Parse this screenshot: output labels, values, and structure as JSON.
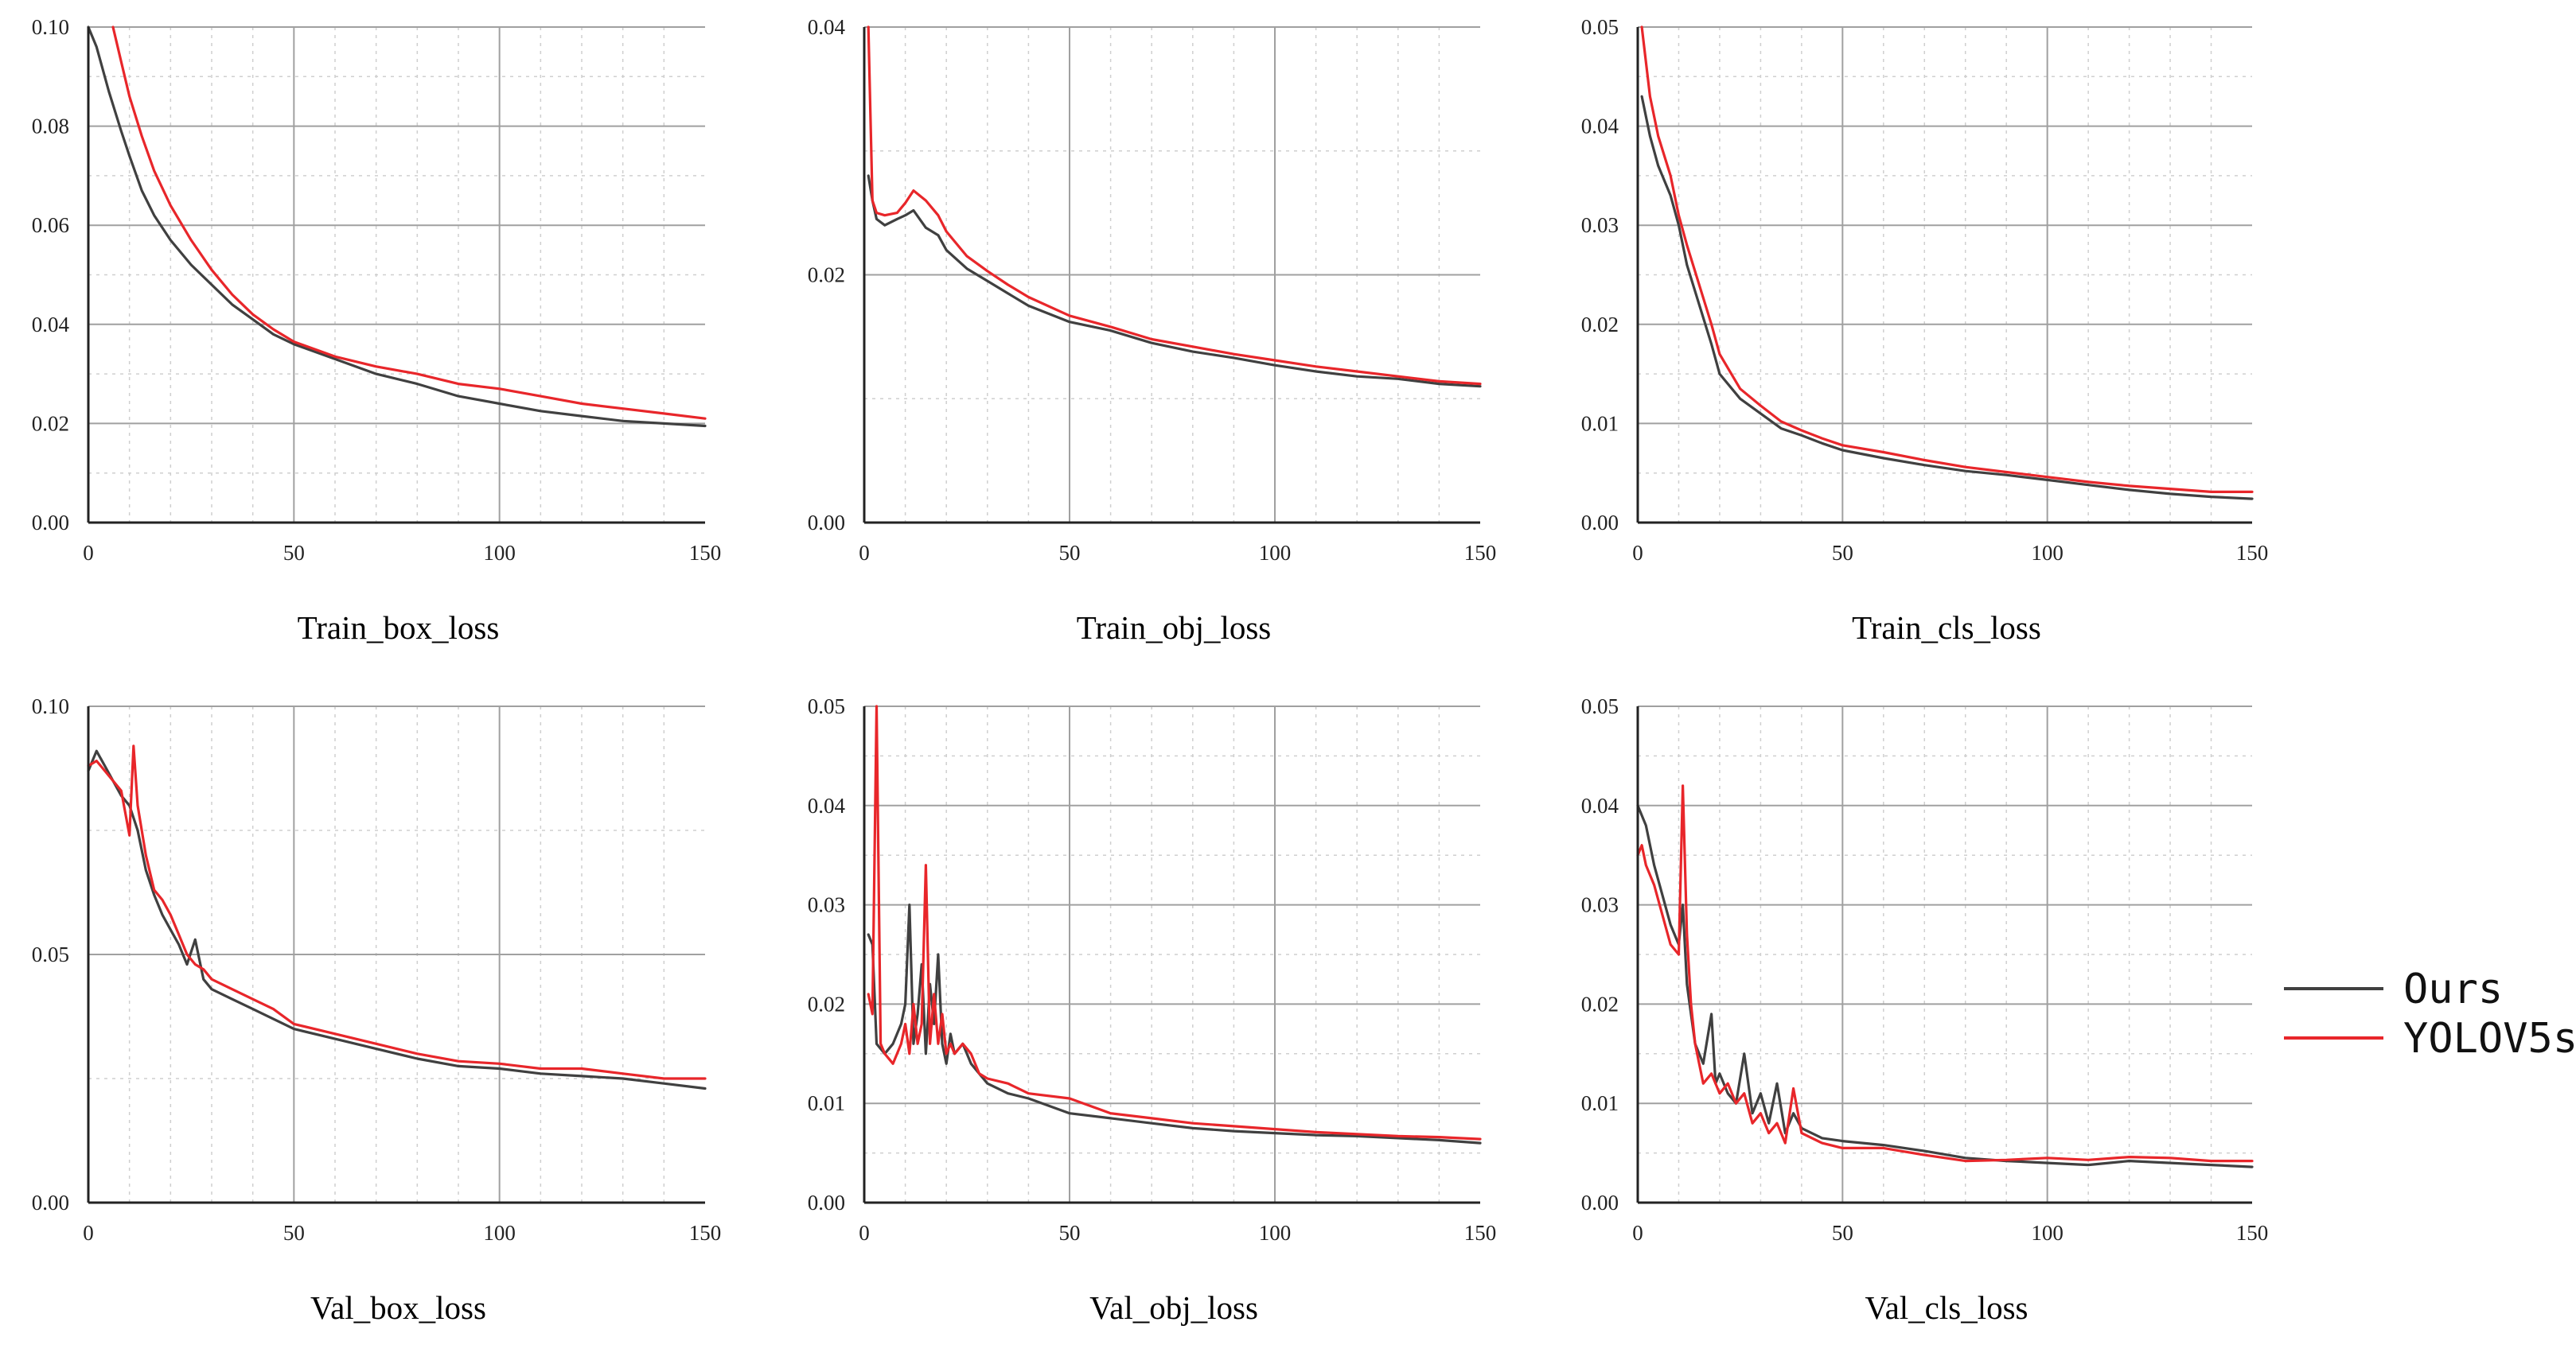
{
  "legend": {
    "entries": [
      {
        "name": "Ours",
        "color": "#404040"
      },
      {
        "name": "YOLOV5s",
        "color": "#e8262a"
      }
    ]
  },
  "chart_data": [
    {
      "type": "line",
      "title": "",
      "xlabel": "Train_box_loss",
      "ylabel": "",
      "xlim": [
        0,
        150
      ],
      "ylim": [
        0,
        0.1
      ],
      "xticks": [
        0,
        50,
        100,
        150
      ],
      "xtick_labels": [
        "0",
        "50",
        "100",
        "150"
      ],
      "yticks": [
        0,
        0.02,
        0.04,
        0.06,
        0.08,
        0.1
      ],
      "ytick_labels": [
        "0.00",
        "0.02",
        "0.04",
        "0.06",
        "0.08",
        "0.10"
      ],
      "grid": true,
      "series": [
        {
          "name": "Ours",
          "color": "#404040",
          "x": [
            0,
            2,
            5,
            8,
            10,
            13,
            16,
            20,
            25,
            30,
            35,
            40,
            45,
            50,
            60,
            70,
            80,
            90,
            100,
            110,
            120,
            130,
            140,
            150
          ],
          "y": [
            0.1,
            0.096,
            0.087,
            0.079,
            0.074,
            0.067,
            0.062,
            0.057,
            0.052,
            0.048,
            0.044,
            0.041,
            0.038,
            0.036,
            0.033,
            0.03,
            0.028,
            0.0255,
            0.024,
            0.0225,
            0.0215,
            0.0205,
            0.02,
            0.0195
          ]
        },
        {
          "name": "YOLOV5s",
          "color": "#e8262a",
          "x": [
            6,
            8,
            10,
            13,
            16,
            20,
            25,
            30,
            35,
            40,
            45,
            50,
            60,
            70,
            80,
            90,
            100,
            110,
            120,
            130,
            140,
            150
          ],
          "y": [
            0.1,
            0.093,
            0.086,
            0.078,
            0.071,
            0.064,
            0.057,
            0.051,
            0.046,
            0.042,
            0.039,
            0.0365,
            0.0335,
            0.0315,
            0.03,
            0.028,
            0.027,
            0.0255,
            0.024,
            0.023,
            0.022,
            0.021
          ]
        }
      ]
    },
    {
      "type": "line",
      "title": "",
      "xlabel": "Train_obj_loss",
      "ylabel": "",
      "xlim": [
        0,
        150
      ],
      "ylim": [
        0,
        0.04
      ],
      "xticks": [
        0,
        50,
        100,
        150
      ],
      "xtick_labels": [
        "0",
        "50",
        "100",
        "150"
      ],
      "yticks": [
        0,
        0.02,
        0.04
      ],
      "ytick_labels": [
        "0.00",
        "0.02",
        "0.04"
      ],
      "grid": true,
      "series": [
        {
          "name": "Ours",
          "color": "#404040",
          "x": [
            1,
            2,
            3,
            5,
            8,
            10,
            12,
            15,
            18,
            20,
            25,
            30,
            35,
            40,
            50,
            60,
            70,
            80,
            90,
            100,
            110,
            120,
            130,
            140,
            150
          ],
          "y": [
            0.028,
            0.026,
            0.0245,
            0.024,
            0.0245,
            0.0248,
            0.0252,
            0.0238,
            0.0232,
            0.022,
            0.0205,
            0.0195,
            0.0185,
            0.0175,
            0.0162,
            0.0155,
            0.0145,
            0.0138,
            0.0133,
            0.0127,
            0.0122,
            0.0118,
            0.0116,
            0.0112,
            0.011
          ]
        },
        {
          "name": "YOLOV5s",
          "color": "#e8262a",
          "x": [
            1,
            2,
            3,
            5,
            8,
            10,
            12,
            15,
            18,
            20,
            25,
            30,
            35,
            40,
            50,
            60,
            70,
            80,
            90,
            100,
            110,
            120,
            130,
            140,
            150
          ],
          "y": [
            0.04,
            0.026,
            0.025,
            0.0248,
            0.025,
            0.0258,
            0.0268,
            0.026,
            0.0248,
            0.0235,
            0.0215,
            0.0203,
            0.0192,
            0.0182,
            0.0167,
            0.0158,
            0.0148,
            0.0142,
            0.0136,
            0.0131,
            0.0126,
            0.0122,
            0.0118,
            0.0114,
            0.0112
          ]
        }
      ]
    },
    {
      "type": "line",
      "title": "",
      "xlabel": "Train_cls_loss",
      "ylabel": "",
      "xlim": [
        0,
        150
      ],
      "ylim": [
        0,
        0.05
      ],
      "xticks": [
        0,
        50,
        100,
        150
      ],
      "xtick_labels": [
        "0",
        "50",
        "100",
        "150"
      ],
      "yticks": [
        0,
        0.01,
        0.02,
        0.03,
        0.04,
        0.05
      ],
      "ytick_labels": [
        "0.00",
        "0.01",
        "0.02",
        "0.03",
        "0.04",
        "0.05"
      ],
      "grid": true,
      "series": [
        {
          "name": "Ours",
          "color": "#404040",
          "x": [
            1,
            3,
            5,
            8,
            10,
            12,
            15,
            18,
            20,
            25,
            30,
            35,
            40,
            45,
            50,
            60,
            70,
            80,
            90,
            100,
            110,
            120,
            130,
            140,
            150
          ],
          "y": [
            0.043,
            0.039,
            0.036,
            0.033,
            0.03,
            0.026,
            0.022,
            0.018,
            0.015,
            0.0125,
            0.011,
            0.0095,
            0.0088,
            0.008,
            0.0073,
            0.0065,
            0.0058,
            0.0052,
            0.0048,
            0.0043,
            0.0038,
            0.0033,
            0.0029,
            0.0026,
            0.0024
          ]
        },
        {
          "name": "YOLOV5s",
          "color": "#e8262a",
          "x": [
            1,
            3,
            5,
            8,
            10,
            12,
            15,
            18,
            20,
            25,
            30,
            35,
            40,
            45,
            50,
            60,
            70,
            80,
            90,
            100,
            110,
            120,
            130,
            140,
            150
          ],
          "y": [
            0.05,
            0.043,
            0.039,
            0.035,
            0.031,
            0.028,
            0.024,
            0.02,
            0.017,
            0.0135,
            0.0118,
            0.0102,
            0.0093,
            0.0085,
            0.0078,
            0.0071,
            0.0063,
            0.0056,
            0.0051,
            0.0046,
            0.0041,
            0.0037,
            0.0034,
            0.0031,
            0.0031
          ]
        }
      ]
    },
    {
      "type": "line",
      "title": "",
      "xlabel": "Val_box_loss",
      "ylabel": "",
      "xlim": [
        0,
        150
      ],
      "ylim": [
        0,
        0.1
      ],
      "xticks": [
        0,
        50,
        100,
        150
      ],
      "xtick_labels": [
        "0",
        "50",
        "100",
        "150"
      ],
      "yticks": [
        0,
        0.05,
        0.1
      ],
      "ytick_labels": [
        "0.00",
        "0.05",
        "0.10"
      ],
      "grid": true,
      "series": [
        {
          "name": "Ours",
          "color": "#404040",
          "x": [
            0,
            2,
            4,
            6,
            8,
            10,
            12,
            14,
            16,
            18,
            20,
            22,
            24,
            26,
            28,
            30,
            35,
            40,
            45,
            50,
            60,
            70,
            80,
            90,
            100,
            110,
            120,
            130,
            140,
            150
          ],
          "y": [
            0.087,
            0.091,
            0.088,
            0.085,
            0.082,
            0.08,
            0.075,
            0.067,
            0.062,
            0.058,
            0.055,
            0.052,
            0.048,
            0.053,
            0.045,
            0.043,
            0.041,
            0.039,
            0.037,
            0.035,
            0.033,
            0.031,
            0.029,
            0.0275,
            0.027,
            0.026,
            0.0255,
            0.025,
            0.024,
            0.023
          ]
        },
        {
          "name": "YOLOV5s",
          "color": "#e8262a",
          "x": [
            0,
            2,
            4,
            6,
            8,
            10,
            11,
            12,
            14,
            16,
            18,
            20,
            22,
            24,
            26,
            28,
            30,
            35,
            40,
            45,
            50,
            60,
            70,
            80,
            90,
            100,
            110,
            120,
            130,
            140,
            150
          ],
          "y": [
            0.088,
            0.089,
            0.087,
            0.085,
            0.083,
            0.074,
            0.092,
            0.08,
            0.07,
            0.063,
            0.061,
            0.058,
            0.054,
            0.05,
            0.048,
            0.047,
            0.045,
            0.043,
            0.041,
            0.039,
            0.036,
            0.034,
            0.032,
            0.03,
            0.0285,
            0.028,
            0.027,
            0.027,
            0.026,
            0.025,
            0.025
          ]
        }
      ]
    },
    {
      "type": "line",
      "title": "",
      "xlabel": "Val_obj_loss",
      "ylabel": "",
      "xlim": [
        0,
        150
      ],
      "ylim": [
        0,
        0.05
      ],
      "xticks": [
        0,
        50,
        100,
        150
      ],
      "xtick_labels": [
        "0",
        "50",
        "100",
        "150"
      ],
      "yticks": [
        0,
        0.01,
        0.02,
        0.03,
        0.04,
        0.05
      ],
      "ytick_labels": [
        "0.00",
        "0.01",
        "0.02",
        "0.03",
        "0.04",
        "0.05"
      ],
      "grid": true,
      "series": [
        {
          "name": "Ours",
          "color": "#404040",
          "x": [
            1,
            2,
            3,
            5,
            7,
            9,
            10,
            11,
            12,
            13,
            14,
            15,
            16,
            17,
            18,
            19,
            20,
            21,
            22,
            24,
            26,
            28,
            30,
            35,
            40,
            50,
            60,
            70,
            80,
            90,
            100,
            110,
            120,
            130,
            140,
            150
          ],
          "y": [
            0.027,
            0.026,
            0.016,
            0.015,
            0.016,
            0.018,
            0.02,
            0.03,
            0.016,
            0.019,
            0.024,
            0.015,
            0.022,
            0.018,
            0.025,
            0.016,
            0.014,
            0.017,
            0.015,
            0.016,
            0.014,
            0.013,
            0.012,
            0.011,
            0.0105,
            0.009,
            0.0085,
            0.008,
            0.0075,
            0.0072,
            0.007,
            0.0068,
            0.0067,
            0.0065,
            0.0063,
            0.006
          ]
        },
        {
          "name": "YOLOV5s",
          "color": "#e8262a",
          "x": [
            1,
            2,
            3,
            4,
            5,
            7,
            9,
            10,
            11,
            12,
            13,
            14,
            15,
            16,
            17,
            18,
            19,
            20,
            21,
            22,
            24,
            26,
            28,
            30,
            35,
            40,
            50,
            60,
            70,
            80,
            90,
            100,
            110,
            120,
            130,
            140,
            150
          ],
          "y": [
            0.021,
            0.019,
            0.05,
            0.016,
            0.015,
            0.014,
            0.016,
            0.018,
            0.015,
            0.02,
            0.016,
            0.018,
            0.034,
            0.016,
            0.021,
            0.016,
            0.019,
            0.015,
            0.016,
            0.015,
            0.016,
            0.015,
            0.013,
            0.0125,
            0.012,
            0.011,
            0.0105,
            0.009,
            0.0085,
            0.008,
            0.0077,
            0.0074,
            0.0071,
            0.0069,
            0.0067,
            0.0066,
            0.0064
          ]
        }
      ]
    },
    {
      "type": "line",
      "title": "",
      "xlabel": "Val_cls_loss",
      "ylabel": "",
      "xlim": [
        0,
        150
      ],
      "ylim": [
        0,
        0.05
      ],
      "xticks": [
        0,
        50,
        100,
        150
      ],
      "xtick_labels": [
        "0",
        "50",
        "100",
        "150"
      ],
      "yticks": [
        0,
        0.01,
        0.02,
        0.03,
        0.04,
        0.05
      ],
      "ytick_labels": [
        "0.00",
        "0.01",
        "0.02",
        "0.03",
        "0.04",
        "0.05"
      ],
      "grid": true,
      "series": [
        {
          "name": "Ours",
          "color": "#404040",
          "x": [
            0,
            2,
            4,
            6,
            8,
            10,
            11,
            12,
            13,
            14,
            16,
            18,
            19,
            20,
            22,
            24,
            26,
            28,
            30,
            32,
            34,
            36,
            38,
            40,
            45,
            50,
            60,
            70,
            80,
            90,
            100,
            110,
            120,
            130,
            140,
            150
          ],
          "y": [
            0.04,
            0.038,
            0.034,
            0.031,
            0.028,
            0.026,
            0.03,
            0.022,
            0.019,
            0.016,
            0.014,
            0.019,
            0.012,
            0.013,
            0.011,
            0.01,
            0.015,
            0.009,
            0.011,
            0.008,
            0.012,
            0.007,
            0.009,
            0.0075,
            0.0065,
            0.0062,
            0.0058,
            0.0052,
            0.0045,
            0.0042,
            0.004,
            0.0038,
            0.0042,
            0.004,
            0.0038,
            0.0036
          ]
        },
        {
          "name": "YOLOV5s",
          "color": "#e8262a",
          "x": [
            0,
            1,
            2,
            4,
            6,
            8,
            10,
            11,
            12,
            13,
            14,
            15,
            16,
            18,
            20,
            22,
            24,
            26,
            28,
            30,
            32,
            34,
            36,
            38,
            40,
            45,
            50,
            60,
            70,
            80,
            90,
            100,
            110,
            120,
            130,
            140,
            150
          ],
          "y": [
            0.035,
            0.036,
            0.034,
            0.032,
            0.029,
            0.026,
            0.025,
            0.042,
            0.027,
            0.02,
            0.016,
            0.014,
            0.012,
            0.013,
            0.011,
            0.012,
            0.01,
            0.011,
            0.008,
            0.009,
            0.007,
            0.008,
            0.006,
            0.0115,
            0.007,
            0.006,
            0.0055,
            0.0055,
            0.0048,
            0.0042,
            0.0043,
            0.0045,
            0.0043,
            0.0046,
            0.0045,
            0.0042,
            0.0042
          ]
        }
      ]
    }
  ]
}
